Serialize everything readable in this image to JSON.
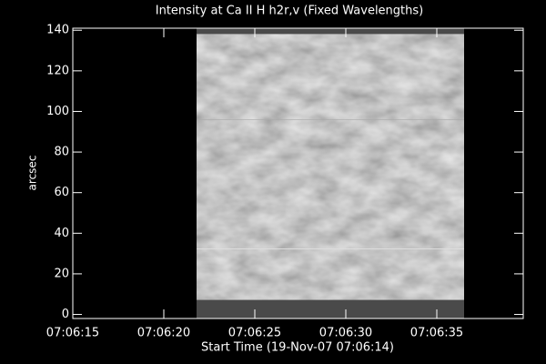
{
  "chart_data": {
    "type": "image",
    "title": "Intensity at Ca II H h2r,v (Fixed Wavelengths)",
    "xlabel": "Start Time (19-Nov-07 07:06:14)",
    "ylabel": "arcsec",
    "image_x": [
      21.8,
      36.5
    ],
    "xlim": [
      15,
      39.75
    ],
    "xticks": [
      {
        "value": 15,
        "label": "07:06:15"
      },
      {
        "value": 20,
        "label": "07:06:20"
      },
      {
        "value": 25,
        "label": "07:06:25"
      },
      {
        "value": 30,
        "label": "07:06:30"
      },
      {
        "value": 35,
        "label": "07:06:35"
      }
    ],
    "ylim": [
      -2,
      141
    ],
    "yticks": [
      0,
      20,
      40,
      60,
      80,
      100,
      120,
      140
    ]
  }
}
